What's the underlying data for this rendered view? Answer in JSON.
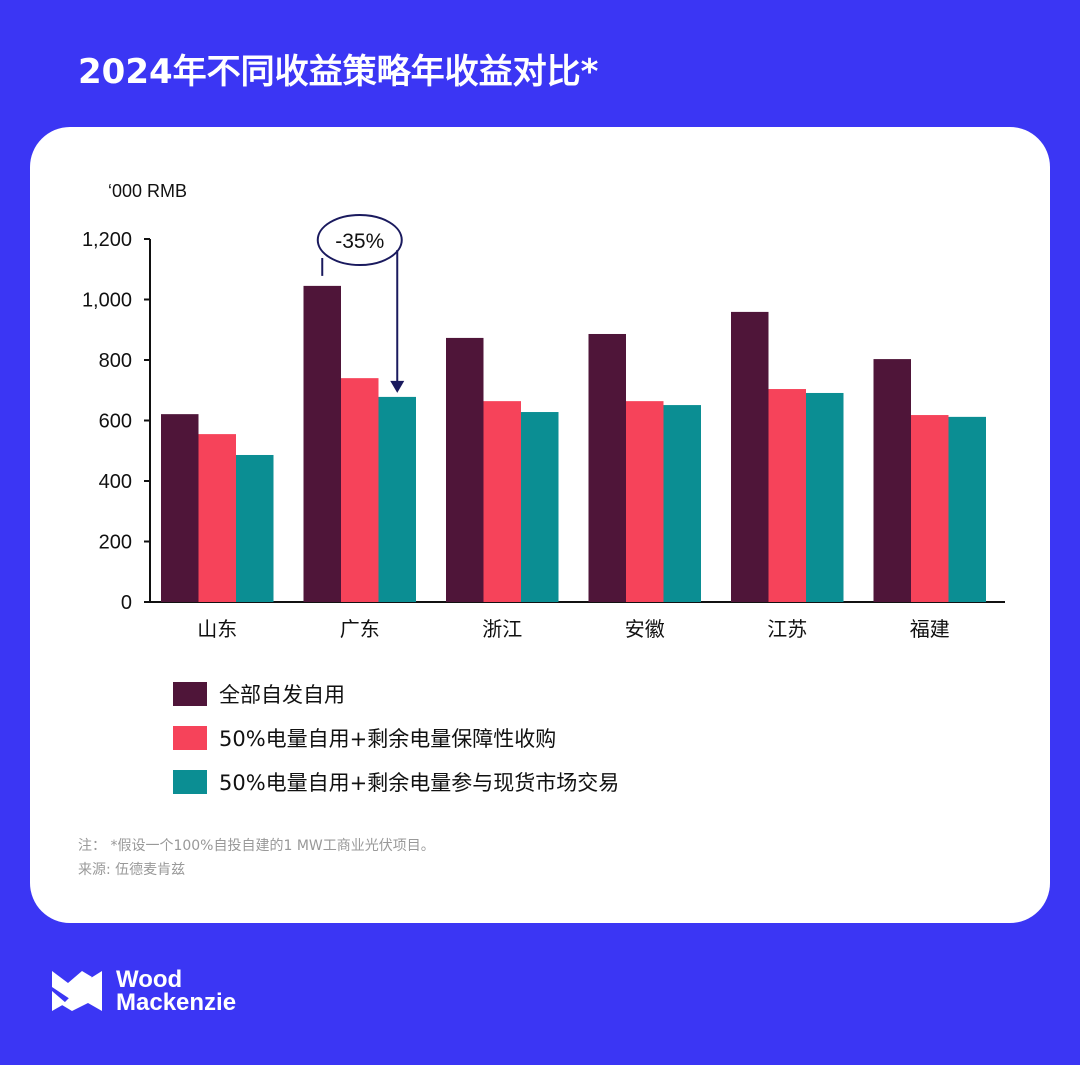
{
  "title": "2024年不同收益策略年收益对比*",
  "chart_data": {
    "type": "bar",
    "ylabel": "‘000 RMB",
    "ylim": [
      0,
      1200
    ],
    "yticks": [
      0,
      200,
      400,
      600,
      800,
      1000,
      1200
    ],
    "ytick_labels": [
      "0",
      "200",
      "400",
      "600",
      "800",
      "1,000",
      "1,200"
    ],
    "categories": [
      "山东",
      "广东",
      "浙江",
      "安徽",
      "江苏",
      "福建"
    ],
    "series": [
      {
        "name": "全部自发自用",
        "color": "#4f1539",
        "values": [
          621,
          1045,
          873,
          886,
          959,
          803
        ]
      },
      {
        "name": "50%电量自用+剩余电量保障性收购",
        "color": "#f6435a",
        "values": [
          555,
          740,
          664,
          664,
          704,
          618
        ]
      },
      {
        "name": "50%电量自用+剩余电量参与现货市场交易",
        "color": "#0b8e93",
        "values": [
          486,
          678,
          628,
          651,
          691,
          612
        ]
      }
    ],
    "annotation": {
      "text": "-35%",
      "category": "广东"
    },
    "legend_position": "bottom-left",
    "grid": false
  },
  "footnote": {
    "note": "注：  *假设一个100%自投自建的1 MW工商业光伏项目。",
    "source": "来源: 伍德麦肯兹"
  },
  "logo": {
    "line1": "Wood",
    "line2": "Mackenzie"
  }
}
